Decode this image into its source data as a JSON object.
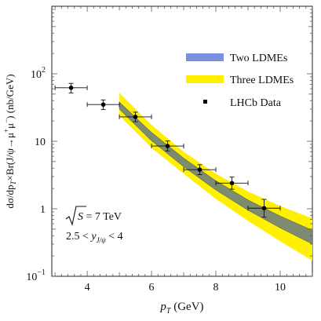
{
  "chart_data": {
    "type": "line",
    "title": "",
    "xlabel_main": "p",
    "xlabel_sub": "T",
    "xlabel_unit": " (GeV)",
    "ylabel": "dσ/dpT×Br(J/ψ→μ+μ−) (nb/GeV)",
    "ylabel_parts": {
      "p1": "dσ/dp",
      "p1_sub": "T",
      "p2": "×Br(J/ψ→μ",
      "p2_sup": "+",
      "p3": "μ",
      "p3_sup": "−",
      "p4": ") (nb/GeV)"
    },
    "xlim": [
      2.9,
      11.0
    ],
    "ylim": [
      0.1,
      1000
    ],
    "yscale": "log",
    "x_ticks": [
      {
        "value": 4,
        "label": "4"
      },
      {
        "value": 6,
        "label": "6"
      },
      {
        "value": 8,
        "label": "8"
      },
      {
        "value": 10,
        "label": "10"
      }
    ],
    "y_ticks": [
      {
        "value": 0.1,
        "base": "10",
        "exp": "−1"
      },
      {
        "value": 1,
        "base": "1",
        "exp": ""
      },
      {
        "value": 10,
        "base": "10",
        "exp": ""
      },
      {
        "value": 100,
        "base": "10",
        "exp": "2"
      }
    ],
    "series": [
      {
        "name": "Two LDMEs",
        "kind": "band",
        "color": "#7b8fe0",
        "x": [
          5.0,
          6.0,
          7.0,
          8.0,
          9.0,
          10.0,
          11.0
        ],
        "lower": [
          30,
          10.2,
          4.2,
          1.9,
          0.95,
          0.52,
          0.3
        ],
        "upper": [
          38,
          13.5,
          5.6,
          2.6,
          1.35,
          0.78,
          0.48
        ]
      },
      {
        "name": "Three LDMEs",
        "kind": "band",
        "color": "#ffef00",
        "x": [
          5.0,
          6.0,
          7.0,
          8.0,
          9.0,
          10.0,
          11.0
        ],
        "lower": [
          24,
          8.0,
          3.3,
          1.4,
          0.66,
          0.33,
          0.17
        ],
        "upper": [
          52,
          17.5,
          7.0,
          3.3,
          1.8,
          1.1,
          0.72
        ]
      },
      {
        "name": "LHCb Data",
        "kind": "points",
        "color": "#000000",
        "points": [
          {
            "x": 3.5,
            "y": 62,
            "xerr": 0.5,
            "ylo": 52,
            "yhi": 72
          },
          {
            "x": 4.5,
            "y": 35,
            "xerr": 0.5,
            "ylo": 29.5,
            "yhi": 41
          },
          {
            "x": 5.5,
            "y": 23,
            "xerr": 0.5,
            "ylo": 19.5,
            "yhi": 27
          },
          {
            "x": 6.5,
            "y": 8.5,
            "xerr": 0.5,
            "ylo": 7.2,
            "yhi": 10.1
          },
          {
            "x": 7.5,
            "y": 3.8,
            "xerr": 0.5,
            "ylo": 3.2,
            "yhi": 4.5
          },
          {
            "x": 8.5,
            "y": 2.4,
            "xerr": 0.5,
            "ylo": 1.95,
            "yhi": 2.95
          },
          {
            "x": 9.5,
            "y": 1.02,
            "xerr": 0.5,
            "ylo": 0.75,
            "yhi": 1.38
          }
        ]
      }
    ],
    "overlap_color": "#7d8c70",
    "legend": {
      "placement": "top-right",
      "items": [
        {
          "label": "Two LDMEs",
          "color": "#7b8fe0",
          "symbol": "bar"
        },
        {
          "label": "Three LDMEs",
          "color": "#ffef00",
          "symbol": "bar"
        },
        {
          "label": "LHCb Data",
          "color": "#000000",
          "symbol": "point"
        }
      ]
    },
    "annotations": {
      "energy_lhs": "S",
      "energy_eq": " = 7 TeV",
      "rapidity_left": "2.5 < ",
      "rapidity_var": "y",
      "rapidity_sub": "J/ψ",
      "rapidity_right": " < 4"
    }
  }
}
